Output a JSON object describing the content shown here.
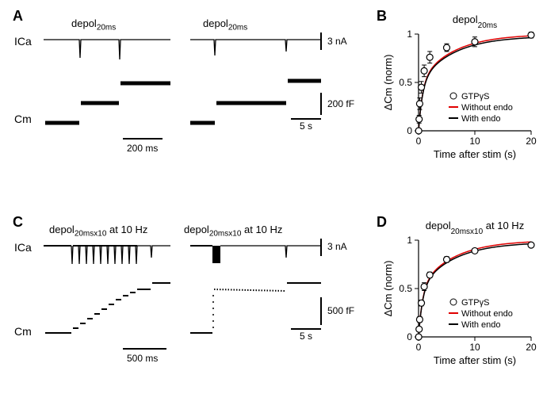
{
  "panels": {
    "A": {
      "label": "A"
    },
    "B": {
      "label": "B"
    },
    "C": {
      "label": "C"
    },
    "D": {
      "label": "D"
    }
  },
  "trace_labels": {
    "ica": "ICa",
    "cm": "Cm"
  },
  "stim": {
    "A_stim": "depol",
    "A_sub": "20ms",
    "C_stim": "depol",
    "C_sub": "20msx10",
    "C_at": " at 10 Hz"
  },
  "scales": {
    "A_current": "3 nA",
    "A_time1": "200 ms",
    "A_cap": "200 fF",
    "A_time2": "5 s",
    "C_current": "3 nA",
    "C_time1": "500 ms",
    "C_cap": "500 fF",
    "C_time2": "5 s"
  },
  "chartB": {
    "title": "depol",
    "title_sub": "20ms",
    "ylabel": "ΔCm (norm)",
    "xlabel": "Time after stim (s)",
    "xlim": [
      0,
      20
    ],
    "ylim": [
      0,
      1
    ],
    "xticks": [
      0,
      10,
      20
    ],
    "yticks": [
      0,
      0.5,
      1
    ],
    "points": [
      {
        "x": 0.02,
        "y": 0.0,
        "err": 0.01
      },
      {
        "x": 0.1,
        "y": 0.12,
        "err": 0.04
      },
      {
        "x": 0.2,
        "y": 0.28,
        "err": 0.06
      },
      {
        "x": 0.5,
        "y": 0.45,
        "err": 0.06
      },
      {
        "x": 1.0,
        "y": 0.62,
        "err": 0.06
      },
      {
        "x": 2.0,
        "y": 0.76,
        "err": 0.06
      },
      {
        "x": 5.0,
        "y": 0.86,
        "err": 0.04
      },
      {
        "x": 10.0,
        "y": 0.92,
        "err": 0.05
      },
      {
        "x": 20.0,
        "y": 0.99,
        "err": 0.03
      }
    ],
    "legend": {
      "gtpys": "GTPγS",
      "without": "Without endo",
      "with": "With endo"
    },
    "colors": {
      "without": "#e00000",
      "with": "#000000",
      "marker_stroke": "#000000",
      "marker_fill": "#ffffff"
    }
  },
  "chartD": {
    "title": "depol",
    "title_sub": "20msx10",
    "title_at": " at 10 Hz",
    "ylabel": "ΔCm (norm)",
    "xlabel": "Time after stim (s)",
    "xlim": [
      0,
      20
    ],
    "ylim": [
      0,
      1
    ],
    "xticks": [
      0,
      10,
      20
    ],
    "yticks": [
      0,
      0.5,
      1
    ],
    "points": [
      {
        "x": 0.02,
        "y": 0.0,
        "err": 0.01
      },
      {
        "x": 0.1,
        "y": 0.08,
        "err": 0.02
      },
      {
        "x": 0.2,
        "y": 0.18,
        "err": 0.03
      },
      {
        "x": 0.5,
        "y": 0.35,
        "err": 0.03
      },
      {
        "x": 1.0,
        "y": 0.52,
        "err": 0.04
      },
      {
        "x": 2.0,
        "y": 0.64,
        "err": 0.03
      },
      {
        "x": 5.0,
        "y": 0.8,
        "err": 0.03
      },
      {
        "x": 10.0,
        "y": 0.89,
        "err": 0.02
      },
      {
        "x": 20.0,
        "y": 0.95,
        "err": 0.02
      }
    ],
    "legend": {
      "gtpys": "GTPγS",
      "without": "Without endo",
      "with": "With endo"
    },
    "colors": {
      "without": "#e00000",
      "with": "#000000",
      "marker_stroke": "#000000",
      "marker_fill": "#ffffff"
    }
  }
}
